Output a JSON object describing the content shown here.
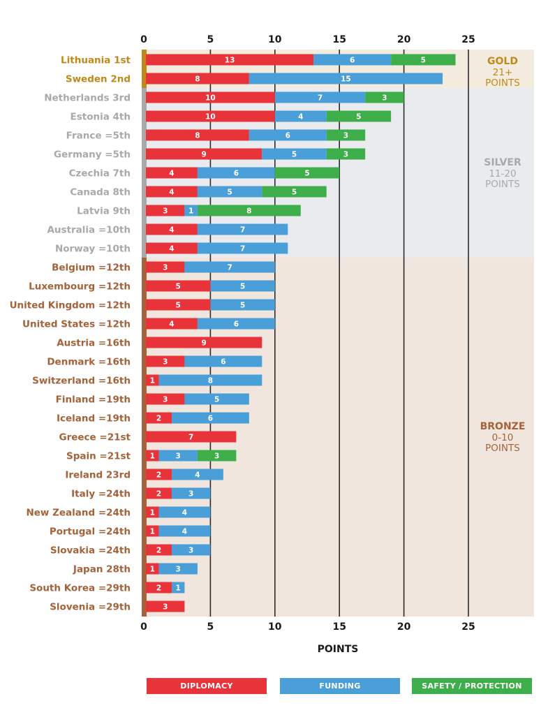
{
  "chart_data": {
    "type": "bar",
    "stacked": true,
    "orientation": "horizontal",
    "xlabel": "POINTS",
    "xlim": [
      0,
      30
    ],
    "xticks": [
      0,
      5,
      10,
      15,
      20,
      25
    ],
    "grid": "vertical lines at ticks",
    "categories": [
      "Lithuania 1st",
      "Sweden 2nd",
      "Netherlands 3rd",
      "Estonia 4th",
      "France =5th",
      "Germany =5th",
      "Czechia 7th",
      "Canada 8th",
      "Latvia 9th",
      "Australia =10th",
      "Norway =10th",
      "Belgium =12th",
      "Luxembourg =12th",
      "United Kingdom =12th",
      "United States =12th",
      "Austria =16th",
      "Denmark =16th",
      "Switzerland =16th",
      "Finland =19th",
      "Iceland =19th",
      "Greece =21st",
      "Spain =21st",
      "Ireland 23rd",
      "Italy =24th",
      "New Zealand =24th",
      "Portugal =24th",
      "Slovakia =24th",
      "Japan 28th",
      "South Korea =29th",
      "Slovenia =29th"
    ],
    "tiers": [
      "gold",
      "gold",
      "silver",
      "silver",
      "silver",
      "silver",
      "silver",
      "silver",
      "silver",
      "silver",
      "silver",
      "bronze",
      "bronze",
      "bronze",
      "bronze",
      "bronze",
      "bronze",
      "bronze",
      "bronze",
      "bronze",
      "bronze",
      "bronze",
      "bronze",
      "bronze",
      "bronze",
      "bronze",
      "bronze",
      "bronze",
      "bronze",
      "bronze"
    ],
    "series": [
      {
        "name": "DIPLOMACY",
        "color": "#e8333b",
        "values": [
          13,
          8,
          10,
          10,
          8,
          9,
          4,
          4,
          3,
          4,
          4,
          3,
          5,
          5,
          4,
          9,
          3,
          1,
          3,
          2,
          7,
          1,
          2,
          2,
          1,
          1,
          2,
          1,
          2,
          3
        ]
      },
      {
        "name": "FUNDING",
        "color": "#4b9fd8",
        "values": [
          6,
          15,
          7,
          4,
          6,
          5,
          6,
          5,
          1,
          7,
          7,
          7,
          5,
          5,
          6,
          0,
          6,
          8,
          5,
          6,
          0,
          3,
          4,
          3,
          4,
          4,
          3,
          3,
          1,
          0
        ]
      },
      {
        "name": "SAFETY / PROTECTION",
        "color": "#3eae4a",
        "values": [
          5,
          0,
          3,
          5,
          3,
          3,
          5,
          5,
          8,
          0,
          0,
          0,
          0,
          0,
          0,
          0,
          0,
          0,
          0,
          0,
          0,
          3,
          0,
          0,
          0,
          0,
          0,
          0,
          0,
          0
        ]
      }
    ],
    "bands": [
      {
        "tier": "gold",
        "title": "GOLD",
        "sub1": "21+",
        "sub2": "POINTS",
        "bg": "#f3ebdd",
        "color": "#c08a1a",
        "bar": "#c08a1a"
      },
      {
        "tier": "silver",
        "title": "SILVER",
        "sub1": "11-20",
        "sub2": "POINTS",
        "bg": "#e9ebee",
        "color": "#a8a9ad",
        "bar": "#a8a9ad"
      },
      {
        "tier": "bronze",
        "title": "BRONZE",
        "sub1": "0-10",
        "sub2": "POINTS",
        "bg": "#f1e6dd",
        "color": "#a4633a",
        "bar": "#a4633a"
      }
    ]
  },
  "legend": {
    "diplomacy": "DIPLOMACY",
    "funding": "FUNDING",
    "safety": "SAFETY / PROTECTION"
  }
}
